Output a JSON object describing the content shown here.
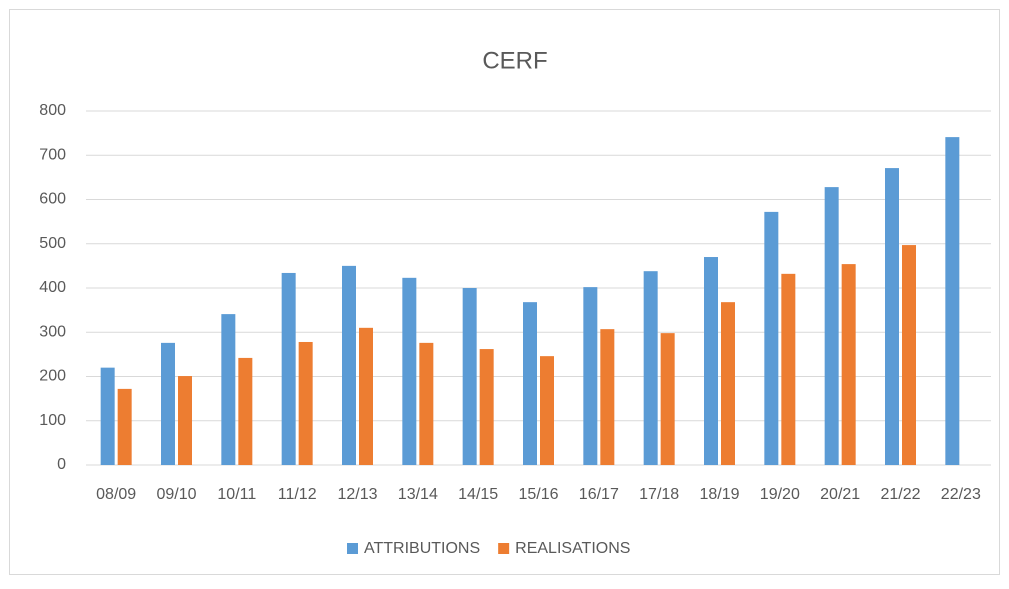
{
  "chart_data": {
    "type": "bar",
    "title": "CERF",
    "categories": [
      "08/09",
      "09/10",
      "10/11",
      "11/12",
      "12/13",
      "13/14",
      "14/15",
      "15/16",
      "16/17",
      "17/18",
      "18/19",
      "19/20",
      "20/21",
      "21/22",
      "22/23"
    ],
    "series": [
      {
        "name": "ATTRIBUTIONS",
        "color": "#5b9bd5",
        "values": [
          220,
          276,
          341,
          434,
          450,
          423,
          400,
          368,
          402,
          438,
          470,
          572,
          628,
          671,
          741
        ]
      },
      {
        "name": "REALISATIONS",
        "color": "#ed7d31",
        "values": [
          172,
          201,
          242,
          278,
          310,
          276,
          262,
          246,
          307,
          298,
          368,
          432,
          454,
          497,
          null
        ]
      }
    ],
    "ylim": [
      0,
      800
    ],
    "yticks": [
      0,
      100,
      200,
      300,
      400,
      500,
      600,
      700,
      800
    ],
    "grid": true,
    "legend": "bottom"
  }
}
